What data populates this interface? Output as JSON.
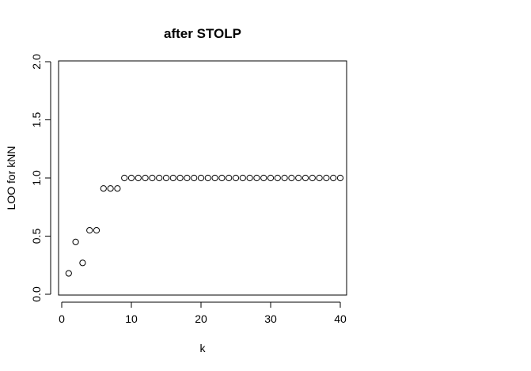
{
  "chart_data": {
    "type": "scatter",
    "title": "after STOLP",
    "xlabel": "k",
    "ylabel": "LOO for kNN",
    "xlim": [
      0,
      40
    ],
    "ylim": [
      0,
      2
    ],
    "x_ticks": [
      "0",
      "10",
      "20",
      "30",
      "40"
    ],
    "y_ticks": [
      "0.0",
      "0.5",
      "1.0",
      "1.5",
      "2.0"
    ],
    "grid": false,
    "legend": "none",
    "marker": "open-circle",
    "series": [
      {
        "x": [
          1,
          2,
          3,
          4,
          5,
          6,
          7,
          8,
          9,
          10,
          11,
          12,
          13,
          14,
          15,
          16,
          17,
          18,
          19,
          20,
          21,
          22,
          23,
          24,
          25,
          26,
          27,
          28,
          29,
          30,
          31,
          32,
          33,
          34,
          35,
          36,
          37,
          38,
          39,
          40
        ],
        "values": [
          0.18,
          0.45,
          0.27,
          0.55,
          0.55,
          0.91,
          0.91,
          0.91,
          1.0,
          1.0,
          1.0,
          1.0,
          1.0,
          1.0,
          1.0,
          1.0,
          1.0,
          1.0,
          1.0,
          1.0,
          1.0,
          1.0,
          1.0,
          1.0,
          1.0,
          1.0,
          1.0,
          1.0,
          1.0,
          1.0,
          1.0,
          1.0,
          1.0,
          1.0,
          1.0,
          1.0,
          1.0,
          1.0,
          1.0,
          1.0
        ]
      }
    ]
  }
}
